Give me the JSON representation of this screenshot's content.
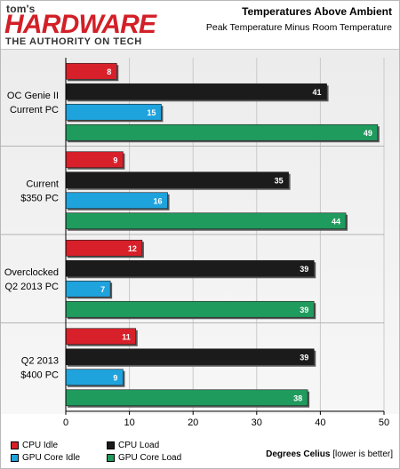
{
  "logo": {
    "line1": "tom's",
    "line2": "HARDWARE",
    "tagline": "THE AUTHORITY ON TECH"
  },
  "chart_data": {
    "type": "bar",
    "orientation": "horizontal",
    "title": "Temperatures Above Ambient",
    "subtitle": "Peak Temperature Minus Room Temperature",
    "xlabel": "Degrees Celius",
    "xlabel_note": "[lower is better]",
    "xlim": [
      0,
      50
    ],
    "xticks": [
      0,
      10,
      20,
      30,
      40,
      50
    ],
    "grid": true,
    "legend_position": "bottom-left",
    "categories": [
      [
        "OC Genie II",
        "Current PC"
      ],
      [
        "Current",
        "$350 PC"
      ],
      [
        "Overclocked",
        "Q2 2013 PC"
      ],
      [
        "Q2 2013",
        "$400 PC"
      ]
    ],
    "series": [
      {
        "name": "CPU Idle",
        "color": "#d8202a",
        "values": [
          8,
          9,
          12,
          11
        ]
      },
      {
        "name": "CPU Load",
        "color": "#1b1b1b",
        "values": [
          41,
          35,
          39,
          39
        ]
      },
      {
        "name": "GPU Core Idle",
        "color": "#1fa3dd",
        "values": [
          15,
          16,
          7,
          9
        ]
      },
      {
        "name": "GPU Core Load",
        "color": "#1f9b5e",
        "values": [
          49,
          44,
          39,
          38
        ]
      }
    ]
  }
}
